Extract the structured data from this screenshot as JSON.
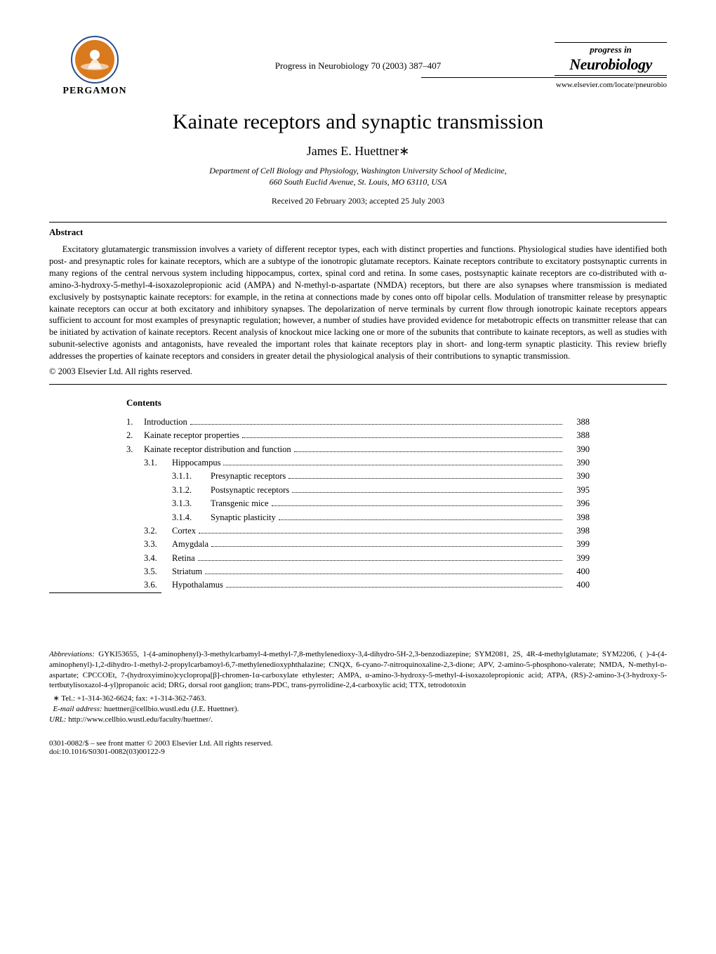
{
  "header": {
    "publisher_logo_text": "PERGAMON",
    "journal_ref": "Progress in Neurobiology 70 (2003) 387–407",
    "journal_logo_top": "progress in",
    "journal_logo_bottom": "Neurobiology",
    "website": "www.elsevier.com/locate/pneurobio"
  },
  "title": "Kainate receptors and synaptic transmission",
  "author": "James E. Huettner",
  "author_sup": "∗",
  "affiliation_line1": "Department of Cell Biology and Physiology, Washington University School of Medicine,",
  "affiliation_line2": "660 South Euclid Avenue, St. Louis, MO 63110, USA",
  "received": "Received 20 February 2003; accepted 25 July 2003",
  "abstract_heading": "Abstract",
  "abstract_body": "Excitatory glutamatergic transmission involves a variety of different receptor types, each with distinct properties and functions. Physiological studies have identified both post- and presynaptic roles for kainate receptors, which are a subtype of the ionotropic glutamate receptors. Kainate receptors contribute to excitatory postsynaptic currents in many regions of the central nervous system including hippocampus, cortex, spinal cord and retina. In some cases, postsynaptic kainate receptors are co-distributed with α-amino-3-hydroxy-5-methyl-4-isoxazolepropionic acid (AMPA) and N-methyl-ᴅ-aspartate (NMDA) receptors, but there are also synapses where transmission is mediated exclusively by postsynaptic kainate receptors: for example, in the retina at connections made by cones onto off bipolar cells. Modulation of transmitter release by presynaptic kainate receptors can occur at both excitatory and inhibitory synapses. The depolarization of nerve terminals by current flow through ionotropic kainate receptors appears sufficient to account for most examples of presynaptic regulation; however, a number of studies have provided evidence for metabotropic effects on transmitter release that can be initiated by activation of kainate receptors. Recent analysis of knockout mice lacking one or more of the subunits that contribute to kainate receptors, as well as studies with subunit-selective agonists and antagonists, have revealed the important roles that kainate receptors play in short- and long-term synaptic plasticity. This review briefly addresses the properties of kainate receptors and considers in greater detail the physiological analysis of their contributions to synaptic transmission.",
  "copyright": "© 2003 Elsevier Ltd. All rights reserved.",
  "contents_heading": "Contents",
  "contents": [
    {
      "level": 0,
      "num": "1.",
      "label": "Introduction",
      "page": "388"
    },
    {
      "level": 0,
      "num": "2.",
      "label": "Kainate receptor properties",
      "page": "388"
    },
    {
      "level": 0,
      "num": "3.",
      "label": "Kainate receptor distribution and function",
      "page": "390"
    },
    {
      "level": 1,
      "num": "3.1.",
      "label": "Hippocampus",
      "page": "390"
    },
    {
      "level": 2,
      "num": "3.1.1.",
      "label": "Presynaptic receptors",
      "page": "390"
    },
    {
      "level": 2,
      "num": "3.1.2.",
      "label": "Postsynaptic receptors",
      "page": "395"
    },
    {
      "level": 2,
      "num": "3.1.3.",
      "label": "Transgenic mice",
      "page": "396"
    },
    {
      "level": 2,
      "num": "3.1.4.",
      "label": "Synaptic plasticity",
      "page": "398"
    },
    {
      "level": 1,
      "num": "3.2.",
      "label": "Cortex",
      "page": "398"
    },
    {
      "level": 1,
      "num": "3.3.",
      "label": "Amygdala",
      "page": "399"
    },
    {
      "level": 1,
      "num": "3.4.",
      "label": "Retina",
      "page": "399"
    },
    {
      "level": 1,
      "num": "3.5.",
      "label": "Striatum",
      "page": "400"
    },
    {
      "level": 1,
      "num": "3.6.",
      "label": "Hypothalamus",
      "page": "400"
    }
  ],
  "abbrev_label": "Abbreviations:",
  "abbrev_body": " GYKI53655, 1-(4-aminophenyl)-3-methylcarbamyl-4-methyl-7,8-methylenedioxy-3,4-dihydro-5H-2,3-benzodiazepine; SYM2081, 2S, 4R-4-methylglutamate; SYM2206, (  )-4-(4-aminophenyl)-1,2-dihydro-1-methyl-2-propylcarbamoyl-6,7-methylenedioxyphthalazine; CNQX, 6-cyano-7-nitroquinoxaline-2,3-dione; APV, 2-amino-5-phosphono-valerate; NMDA, N-methyl-ᴅ-aspartate; CPCCOEt, 7-(hydroxyimino)cyclopropa[β]-chromen-1α-carboxylate ethylester; AMPA, α-amino-3-hydroxy-5-methyl-4-isoxazolepropionic acid; ATPA, (RS)-2-amino-3-(3-hydroxy-5-tertbutylisoxazol-4-yl)propanoic acid; DRG, dorsal root ganglion; trans-PDC, trans-pyrrolidine-2,4-carboxylic acid; TTX, tetrodotoxin",
  "footnote_star": "∗ Tel.: +1-314-362-6624; fax: +1-314-362-7463.",
  "footnote_email_label": "E-mail address:",
  "footnote_email": " huettner@cellbio.wustl.edu (J.E. Huettner).",
  "footnote_url_label": "URL:",
  "footnote_url": " http://www.cellbio.wustl.edu/faculty/huettner/.",
  "footer_line1": "0301-0082/$ – see front matter © 2003 Elsevier Ltd. All rights reserved.",
  "footer_line2": "doi:10.1016/S0301-0082(03)00122-9",
  "colors": {
    "text": "#000000",
    "background": "#ffffff",
    "logo_orange": "#d97a1e",
    "logo_blue": "#2a4d8f"
  }
}
